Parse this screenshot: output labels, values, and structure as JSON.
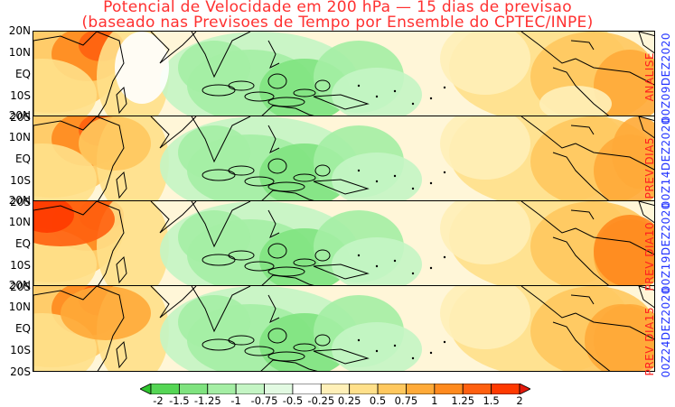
{
  "title_line1": "Potencial de Velocidade em 200 hPa — 15 dias de previsao",
  "title_line2": "(baseado nas Previsoes de Tempo por Ensemble do CPTEC/INPE)",
  "latitude_labels": [
    "20N",
    "10N",
    "EQ",
    "10S",
    "20S"
  ],
  "panels": [
    {
      "label": "ANALISE",
      "date": "00Z09DEZ2020"
    },
    {
      "label": "PREV DIA5",
      "date": "00Z14DEZ2020"
    },
    {
      "label": "PREV DIA10",
      "date": "00Z19DEZ2020"
    },
    {
      "label": "PREV DIA15",
      "date": "00Z24DEZ2020"
    }
  ],
  "colorbar": {
    "tick_labels": [
      "-2",
      "-1.5",
      "-1.25",
      "-1",
      "-0.75",
      "-0.5",
      "-0.25",
      "0.25",
      "0.5",
      "0.75",
      "1",
      "1.25",
      "1.5",
      "2"
    ],
    "colors": [
      "#2ec52e",
      "#55d655",
      "#7fe37f",
      "#a4eea4",
      "#c4f5c4",
      "#e2fae2",
      "#ffffff",
      "#fff0b8",
      "#ffe08a",
      "#ffc85e",
      "#ffaa38",
      "#ff8a1e",
      "#ff6010",
      "#ff3a00",
      "#e41a0c"
    ]
  },
  "colors": {
    "title": "#ff3030",
    "panel_label": "#ff2020",
    "panel_date": "#2233ff"
  }
}
